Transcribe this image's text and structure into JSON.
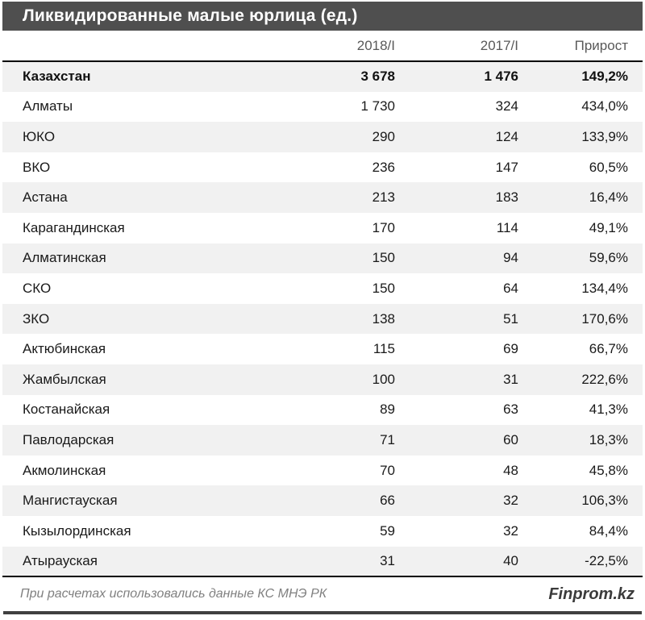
{
  "chart_data": {
    "type": "table",
    "title": "Ликвидированные малые юрлица (ед.)",
    "columns": [
      "2018/I",
      "2017/I",
      "Прирост"
    ],
    "rows": [
      {
        "name": "Казахстан",
        "v2018": "3 678",
        "v2017": "1 476",
        "growth": "149,2%",
        "bold": true
      },
      {
        "name": "Алматы",
        "v2018": "1 730",
        "v2017": "324",
        "growth": "434,0%"
      },
      {
        "name": "ЮКО",
        "v2018": "290",
        "v2017": "124",
        "growth": "133,9%"
      },
      {
        "name": "ВКО",
        "v2018": "236",
        "v2017": "147",
        "growth": "60,5%"
      },
      {
        "name": "Астана",
        "v2018": "213",
        "v2017": "183",
        "growth": "16,4%"
      },
      {
        "name": "Карагандинская",
        "v2018": "170",
        "v2017": "114",
        "growth": "49,1%"
      },
      {
        "name": "Алматинская",
        "v2018": "150",
        "v2017": "94",
        "growth": "59,6%"
      },
      {
        "name": "СКО",
        "v2018": "150",
        "v2017": "64",
        "growth": "134,4%"
      },
      {
        "name": "ЗКО",
        "v2018": "138",
        "v2017": "51",
        "growth": "170,6%"
      },
      {
        "name": "Актюбинская",
        "v2018": "115",
        "v2017": "69",
        "growth": "66,7%"
      },
      {
        "name": "Жамбылская",
        "v2018": "100",
        "v2017": "31",
        "growth": "222,6%"
      },
      {
        "name": "Костанайская",
        "v2018": "89",
        "v2017": "63",
        "growth": "41,3%"
      },
      {
        "name": "Павлодарская",
        "v2018": "71",
        "v2017": "60",
        "growth": "18,3%"
      },
      {
        "name": "Акмолинская",
        "v2018": "70",
        "v2017": "48",
        "growth": "45,8%"
      },
      {
        "name": "Мангистауская",
        "v2018": "66",
        "v2017": "32",
        "growth": "106,3%"
      },
      {
        "name": "Кызылординская",
        "v2018": "59",
        "v2017": "32",
        "growth": "84,4%"
      },
      {
        "name": "Атырауская",
        "v2018": "31",
        "v2017": "40",
        "growth": "-22,5%"
      }
    ],
    "layout_hints": {
      "striped_rows": "odd",
      "first_row_bold": true,
      "value_alignment": "right"
    }
  },
  "footer": {
    "note": "При расчетах использовались данные КС МНЭ РК",
    "brand": "Finprom.kz"
  },
  "colors": {
    "titlebar_bg": "#4f4f4f",
    "titlebar_text": "#ffffff",
    "header_text": "#595959",
    "stripe_bg": "#f1f1f1",
    "body_text": "#1a1a1a",
    "rule": "#000000",
    "footer_note": "#808080",
    "brand_text": "#3b3b3b",
    "bottom_bar": "#404040"
  }
}
